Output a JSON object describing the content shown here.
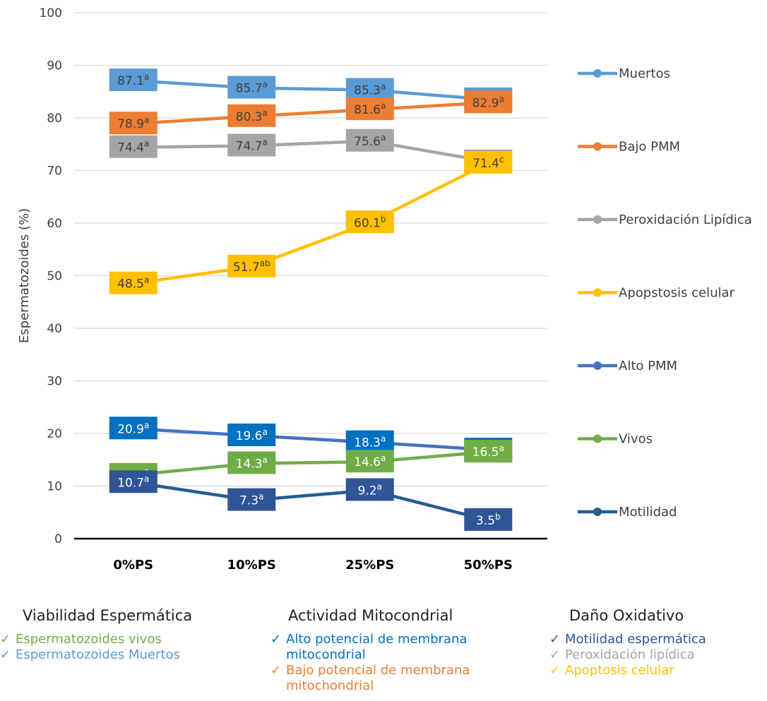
{
  "chart_data": {
    "type": "line",
    "categories": [
      "0%PS",
      "10%PS",
      "25%PS",
      "50%PS"
    ],
    "ylabel": "Espermatozoides (%)",
    "ylim": [
      0,
      100
    ],
    "yticks": [
      0,
      10,
      20,
      30,
      40,
      50,
      60,
      70,
      80,
      90,
      100
    ],
    "grid": true,
    "legend_position": "right",
    "series": [
      {
        "name": "Muertos",
        "values": [
          87.1,
          85.7,
          85.3,
          83.5
        ],
        "letters": [
          "a",
          "a",
          "a",
          "a"
        ],
        "color": "#5B9BD5",
        "box_color": "#5B9BD5",
        "label_color": "#404040"
      },
      {
        "name": "Bajo PMM",
        "values": [
          78.9,
          80.3,
          81.6,
          82.9
        ],
        "letters": [
          "a",
          "a",
          "a",
          "a"
        ],
        "color": "#ED7D31",
        "box_color": "#ED7D31",
        "label_color": "#404040"
      },
      {
        "name": "Peroxidación Lipídica",
        "values": [
          74.4,
          74.7,
          75.6,
          71.7
        ],
        "letters": [
          "a",
          "a",
          "a",
          "a"
        ],
        "color": "#A5A5A5",
        "box_color": "#A5A5A5",
        "label_color": "#404040"
      },
      {
        "name": "Apopstosis celular",
        "values": [
          48.5,
          51.7,
          60.1,
          71.4
        ],
        "letters": [
          "a",
          "ab",
          "b",
          "c"
        ],
        "color": "#FFC000",
        "box_color": "#FFC000",
        "label_color": "#404040"
      },
      {
        "name": "Alto PMM",
        "values": [
          20.9,
          19.6,
          18.3,
          16.9
        ],
        "letters": [
          "a",
          "a",
          "a",
          "a"
        ],
        "color": "#4472C4",
        "box_color": "#0070C0",
        "label_color": "#ffffff"
      },
      {
        "name": "Vivos",
        "values": [
          12.1,
          14.3,
          14.6,
          16.5
        ],
        "letters": [
          "a",
          "a",
          "a",
          "a"
        ],
        "color": "#70AD47",
        "box_color": "#70AD47",
        "label_color": "#ffffff"
      },
      {
        "name": "Motilidad",
        "values": [
          10.7,
          7.3,
          9.2,
          3.5
        ],
        "letters": [
          "a",
          "a",
          "a",
          "b"
        ],
        "color": "#255E91",
        "box_color": "#2F5597",
        "label_color": "#ffffff"
      }
    ]
  },
  "footer": {
    "groups": [
      {
        "title": "Viabilidad Espermática",
        "items": [
          {
            "check": "✓",
            "text": "Espermatozoides vivos",
            "color": "#70AD47"
          },
          {
            "check": "✓",
            "text": "Espermatozoides Muertos",
            "color": "#5B9BD5"
          }
        ]
      },
      {
        "title": "Actividad Mitocondrial",
        "items": [
          {
            "check": "✓",
            "text": "Alto potencial de membrana\nmitocondrial",
            "color": "#0070C0"
          },
          {
            "check": "✓",
            "text": "Bajo potencial de membrana\nmitochondrial",
            "color": "#ED7D31"
          }
        ]
      },
      {
        "title": "Daño Oxidativo",
        "items": [
          {
            "check": "✓",
            "text": "Motilidad espermática",
            "color": "#2F5597"
          },
          {
            "check": "✓",
            "text": "Peroxidación lipídica",
            "color": "#A5A5A5"
          },
          {
            "check": "✓",
            "text": "Apoptosis celular",
            "color": "#FFC000"
          }
        ]
      }
    ]
  }
}
